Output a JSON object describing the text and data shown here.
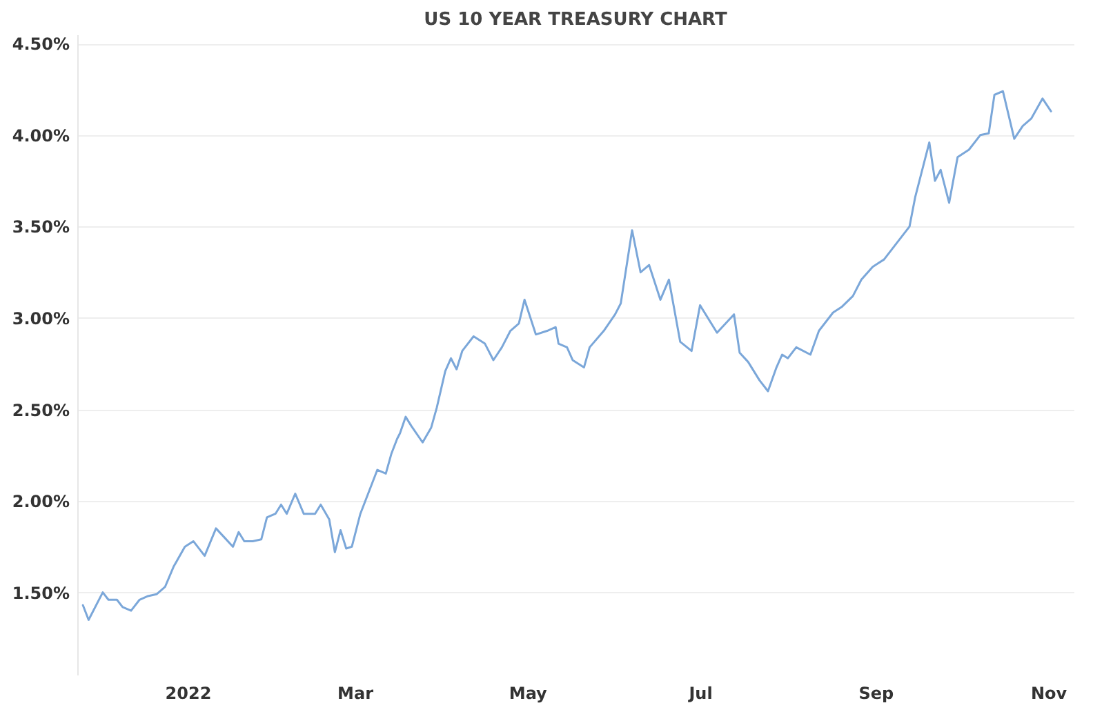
{
  "chart_data": {
    "type": "line",
    "title": "US 10 YEAR TREASURY CHART",
    "x": [
      "2021-11-25",
      "2021-11-27",
      "2021-12-02",
      "2021-12-04",
      "2021-12-07",
      "2021-12-09",
      "2021-12-12",
      "2021-12-15",
      "2021-12-18",
      "2021-12-21",
      "2021-12-24",
      "2021-12-27",
      "2021-12-31",
      "2022-01-03",
      "2022-01-07",
      "2022-01-11",
      "2022-01-14",
      "2022-01-17",
      "2022-01-19",
      "2022-01-21",
      "2022-01-24",
      "2022-01-27",
      "2022-01-29",
      "2022-02-01",
      "2022-02-03",
      "2022-02-05",
      "2022-02-08",
      "2022-02-11",
      "2022-02-15",
      "2022-02-17",
      "2022-02-20",
      "2022-02-22",
      "2022-02-24",
      "2022-02-26",
      "2022-02-28",
      "2022-03-03",
      "2022-03-07",
      "2022-03-09",
      "2022-03-12",
      "2022-03-14",
      "2022-03-16",
      "2022-03-17",
      "2022-03-19",
      "2022-03-21",
      "2022-03-25",
      "2022-03-28",
      "2022-03-30",
      "2022-04-02",
      "2022-04-04",
      "2022-04-06",
      "2022-04-08",
      "2022-04-12",
      "2022-04-16",
      "2022-04-19",
      "2022-04-22",
      "2022-04-25",
      "2022-04-28",
      "2022-04-30",
      "2022-05-04",
      "2022-05-08",
      "2022-05-11",
      "2022-05-12",
      "2022-05-15",
      "2022-05-17",
      "2022-05-21",
      "2022-05-23",
      "2022-05-28",
      "2022-06-01",
      "2022-06-03",
      "2022-06-07",
      "2022-06-10",
      "2022-06-13",
      "2022-06-17",
      "2022-06-20",
      "2022-06-24",
      "2022-06-28",
      "2022-07-01",
      "2022-07-07",
      "2022-07-13",
      "2022-07-15",
      "2022-07-18",
      "2022-07-22",
      "2022-07-25",
      "2022-07-28",
      "2022-07-30",
      "2022-08-01",
      "2022-08-04",
      "2022-08-09",
      "2022-08-12",
      "2022-08-17",
      "2022-08-20",
      "2022-08-24",
      "2022-08-27",
      "2022-08-31",
      "2022-09-04",
      "2022-09-08",
      "2022-09-13",
      "2022-09-15",
      "2022-09-20",
      "2022-09-22",
      "2022-09-24",
      "2022-09-27",
      "2022-09-30",
      "2022-10-04",
      "2022-10-08",
      "2022-10-11",
      "2022-10-13",
      "2022-10-16",
      "2022-10-20",
      "2022-10-23",
      "2022-10-26",
      "2022-10-30",
      "2022-11-02"
    ],
    "series": [
      {
        "color": "#7ba7d9",
        "values": [
          1.43,
          1.35,
          1.5,
          1.46,
          1.46,
          1.42,
          1.4,
          1.46,
          1.48,
          1.49,
          1.53,
          1.64,
          1.75,
          1.78,
          1.7,
          1.85,
          1.8,
          1.75,
          1.83,
          1.78,
          1.78,
          1.79,
          1.91,
          1.93,
          1.98,
          1.93,
          2.04,
          1.93,
          1.93,
          1.98,
          1.9,
          1.72,
          1.84,
          1.74,
          1.75,
          1.93,
          2.09,
          2.17,
          2.15,
          2.26,
          2.34,
          2.37,
          2.46,
          2.41,
          2.32,
          2.4,
          2.51,
          2.71,
          2.78,
          2.72,
          2.82,
          2.9,
          2.86,
          2.77,
          2.84,
          2.93,
          2.97,
          3.1,
          2.91,
          2.93,
          2.95,
          2.86,
          2.84,
          2.77,
          2.73,
          2.84,
          2.93,
          3.02,
          3.08,
          3.48,
          3.25,
          3.29,
          3.1,
          3.21,
          2.87,
          2.82,
          3.07,
          2.92,
          3.02,
          2.81,
          2.76,
          2.66,
          2.6,
          2.73,
          2.8,
          2.78,
          2.84,
          2.8,
          2.93,
          3.03,
          3.06,
          3.12,
          3.21,
          3.28,
          3.32,
          3.4,
          3.5,
          3.66,
          3.96,
          3.75,
          3.81,
          3.63,
          3.88,
          3.92,
          4.0,
          4.01,
          4.22,
          4.24,
          3.98,
          4.05,
          4.09,
          4.2,
          4.13
        ]
      }
    ],
    "xlim": [
      "2021-11-23",
      "2022-11-10"
    ],
    "xticks": [
      {
        "value": "2022-01-01",
        "label": "2022"
      },
      {
        "value": "2022-03-01",
        "label": "Mar"
      },
      {
        "value": "2022-05-01",
        "label": "May"
      },
      {
        "value": "2022-07-01",
        "label": "Jul"
      },
      {
        "value": "2022-09-01",
        "label": "Sep"
      },
      {
        "value": "2022-11-01",
        "label": "Nov"
      }
    ],
    "ylim": [
      1.05,
      4.55
    ],
    "yticks": [
      {
        "value": 1.5,
        "label": "1.50%"
      },
      {
        "value": 2,
        "label": "2.00%"
      },
      {
        "value": 2.5,
        "label": "2.50%"
      },
      {
        "value": 3,
        "label": "3.00%"
      },
      {
        "value": 3.5,
        "label": "3.50%"
      },
      {
        "value": 4,
        "label": "4.00%"
      },
      {
        "value": 4.5,
        "label": "4.50%"
      }
    ],
    "grid": "y"
  }
}
